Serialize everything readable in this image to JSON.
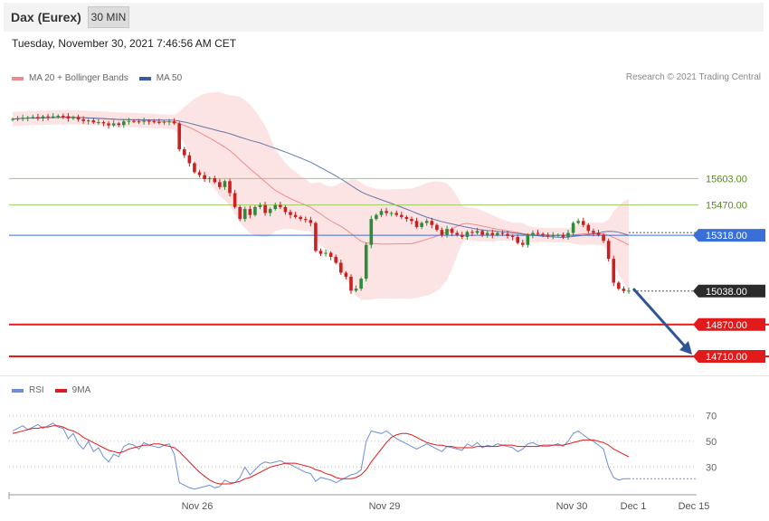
{
  "header": {
    "title": "Dax (Eurex)",
    "timeframe": "30 MIN"
  },
  "datetime": "Tuesday, November 30, 2021 7:46:56 AM CET",
  "credit": "Research © 2021 Trading Central",
  "colors": {
    "up": "#2e8b3a",
    "down": "#cc1f1f",
    "bollinger_fill": "#fde1e1",
    "ma20": "#f08a8a",
    "ma50": "#3d5a99",
    "resistance": "#9ccc65",
    "pivot": "#3a6fd8",
    "support": "#e11b1b",
    "rsi": "#6b8fd6",
    "rsi_ma": "#e11b1b",
    "arrow": "#2f5597"
  },
  "chart_data": [
    {
      "type": "candlestick",
      "legend": [
        {
          "name": "MA 20 + Bollinger Bands",
          "color": "#f08a8a"
        },
        {
          "name": "MA 50",
          "color": "#3d5a99"
        }
      ],
      "ylim": [
        14660,
        16000
      ],
      "levels": [
        {
          "label": "15603.00",
          "value": 15603,
          "kind": "resistance"
        },
        {
          "label": "15470.00",
          "value": 15470,
          "kind": "resistance"
        },
        {
          "label": "15318.00",
          "value": 15318,
          "kind": "pivot"
        },
        {
          "label": "15038.00",
          "value": 15038,
          "kind": "last"
        },
        {
          "label": "14870.00",
          "value": 14870,
          "kind": "support"
        },
        {
          "label": "14710.00",
          "value": 14710,
          "kind": "support"
        }
      ],
      "close_series": [
        15902,
        15905,
        15908,
        15910,
        15912,
        15905,
        15915,
        15912,
        15915,
        15918,
        15916,
        15905,
        15912,
        15900,
        15892,
        15895,
        15885,
        15886,
        15880,
        15870,
        15880,
        15872,
        15890,
        15892,
        15890,
        15888,
        15893,
        15890,
        15887,
        15886,
        15888,
        15890,
        15880,
        15750,
        15720,
        15680,
        15635,
        15620,
        15600,
        15605,
        15585,
        15560,
        15590,
        15530,
        15460,
        15400,
        15450,
        15420,
        15460,
        15470,
        15430,
        15450,
        15470,
        15460,
        15435,
        15420,
        15410,
        15400,
        15395,
        15380,
        15240,
        15225,
        15230,
        15210,
        15180,
        15130,
        15110,
        15040,
        15050,
        15100,
        15270,
        15400,
        15420,
        15440,
        15430,
        15430,
        15420,
        15410,
        15400,
        15390,
        15360,
        15380,
        15390,
        15370,
        15345,
        15320,
        15350,
        15330,
        15320,
        15310,
        15335,
        15330,
        15340,
        15320,
        15330,
        15320,
        15330,
        15325,
        15315,
        15310,
        15280,
        15270,
        15320,
        15330,
        15325,
        15320,
        15315,
        15318,
        15320,
        15310,
        15330,
        15380,
        15390,
        15370,
        15340,
        15330,
        15320,
        15290,
        15200,
        15080,
        15050,
        15038,
        15040
      ],
      "x_ticks": [
        "Nov 26",
        "Nov 29",
        "Nov 30",
        "Dec 1",
        "Dec 15"
      ],
      "target_arrow": {
        "from": 15050,
        "to": 14710
      }
    },
    {
      "type": "line",
      "legend": [
        {
          "name": "RSI",
          "color": "#6b8fd6"
        },
        {
          "name": "9MA",
          "color": "#e11b1b"
        }
      ],
      "ylim": [
        10,
        80
      ],
      "levels": [
        {
          "label": "70",
          "value": 70
        },
        {
          "label": "50",
          "value": 50
        },
        {
          "label": "30",
          "value": 30
        }
      ],
      "series": [
        {
          "name": "RSI",
          "values": [
            58,
            60,
            62,
            59,
            61,
            63,
            60,
            62,
            64,
            61,
            60,
            52,
            56,
            48,
            44,
            50,
            42,
            45,
            38,
            34,
            40,
            38,
            46,
            48,
            47,
            44,
            49,
            47,
            46,
            45,
            47,
            48,
            40,
            18,
            16,
            14,
            13,
            14,
            15,
            16,
            14,
            15,
            20,
            18,
            18,
            22,
            30,
            24,
            28,
            32,
            34,
            33,
            34,
            35,
            33,
            32,
            30,
            28,
            26,
            25,
            19,
            22,
            21,
            20,
            18,
            20,
            22,
            24,
            25,
            28,
            50,
            58,
            57,
            56,
            58,
            55,
            52,
            50,
            48,
            46,
            44,
            46,
            48,
            46,
            44,
            42,
            46,
            45,
            44,
            43,
            48,
            46,
            49,
            45,
            47,
            46,
            48,
            47,
            46,
            45,
            42,
            44,
            48,
            49,
            47,
            46,
            46,
            47,
            48,
            46,
            50,
            56,
            58,
            55,
            52,
            50,
            47,
            44,
            30,
            22,
            20,
            21,
            21
          ]
        },
        {
          "name": "9MA",
          "values": [
            56,
            57,
            58,
            59,
            60,
            60,
            61,
            61,
            62,
            62,
            61,
            59,
            58,
            56,
            53,
            51,
            49,
            47,
            45,
            43,
            42,
            41,
            42,
            44,
            45,
            46,
            47,
            47,
            48,
            48,
            47,
            46,
            45,
            42,
            38,
            34,
            30,
            26,
            23,
            20,
            18,
            17,
            17,
            17,
            18,
            19,
            21,
            22,
            24,
            26,
            28,
            30,
            31,
            32,
            33,
            33,
            33,
            32,
            31,
            30,
            28,
            27,
            25,
            24,
            22,
            21,
            21,
            21,
            22,
            24,
            28,
            34,
            39,
            44,
            49,
            53,
            55,
            56,
            56,
            55,
            53,
            51,
            49,
            48,
            47,
            47,
            46,
            46,
            45,
            45,
            45,
            45,
            46,
            46,
            46,
            46,
            46,
            47,
            47,
            47,
            46,
            46,
            46,
            46,
            46,
            47,
            47,
            47,
            47,
            47,
            48,
            49,
            50,
            51,
            51,
            51,
            50,
            49,
            47,
            44,
            42,
            40,
            38
          ]
        }
      ]
    }
  ]
}
